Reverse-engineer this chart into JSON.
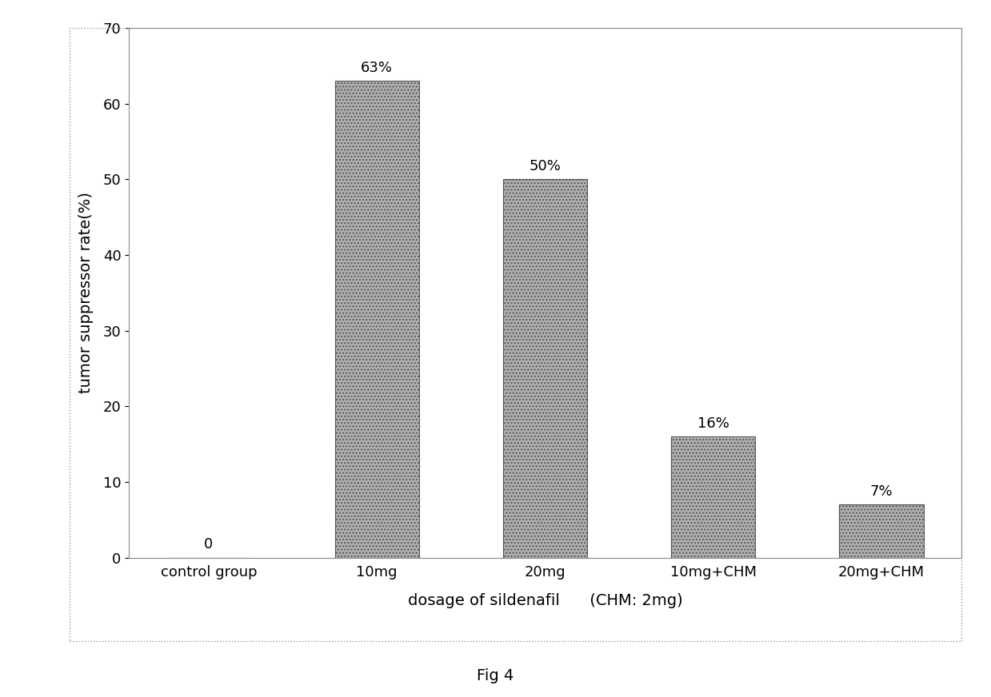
{
  "categories": [
    "control group",
    "10mg",
    "20mg",
    "10mg+CHM",
    "20mg+CHM"
  ],
  "values": [
    0,
    63,
    50,
    16,
    7
  ],
  "labels": [
    "0",
    "63%",
    "50%",
    "16%",
    "7%"
  ],
  "bar_color": "#b0b0b0",
  "bar_edgecolor": "#555555",
  "ylabel": "tumor suppressor rate(%)",
  "xlabel_line1": "dosage of sildenafil",
  "xlabel_line2": "  (CHM: 2mg)",
  "caption": "Fig 4",
  "ylim": [
    0,
    70
  ],
  "yticks": [
    0,
    10,
    20,
    30,
    40,
    50,
    60,
    70
  ],
  "bar_width": 0.5,
  "background_color": "#ffffff",
  "figure_background": "#ffffff",
  "label_fontsize": 14,
  "tick_fontsize": 13,
  "annot_fontsize": 13,
  "caption_fontsize": 14
}
